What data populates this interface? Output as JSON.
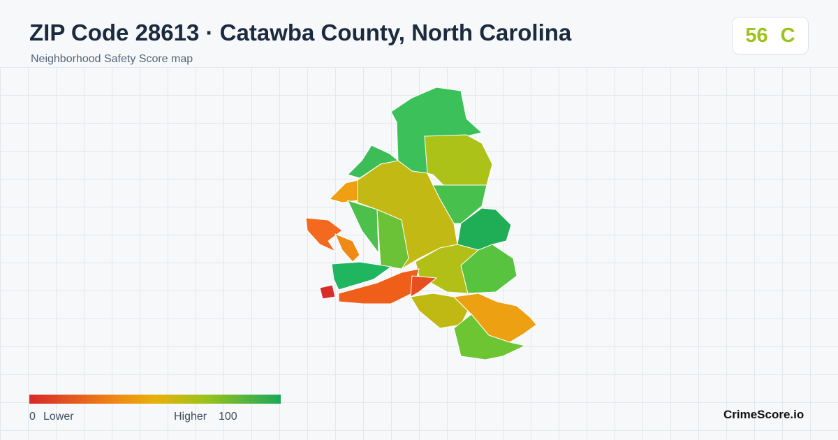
{
  "header": {
    "title": "ZIP Code 28613 · Catawba County, North Carolina",
    "subtitle": "Neighborhood Safety Score map"
  },
  "badge": {
    "score": 56,
    "grade": "C"
  },
  "legend": {
    "min": 0,
    "min_label": "Lower",
    "max_label": "Higher",
    "max": 100
  },
  "brand": "CrimeScore.io"
}
